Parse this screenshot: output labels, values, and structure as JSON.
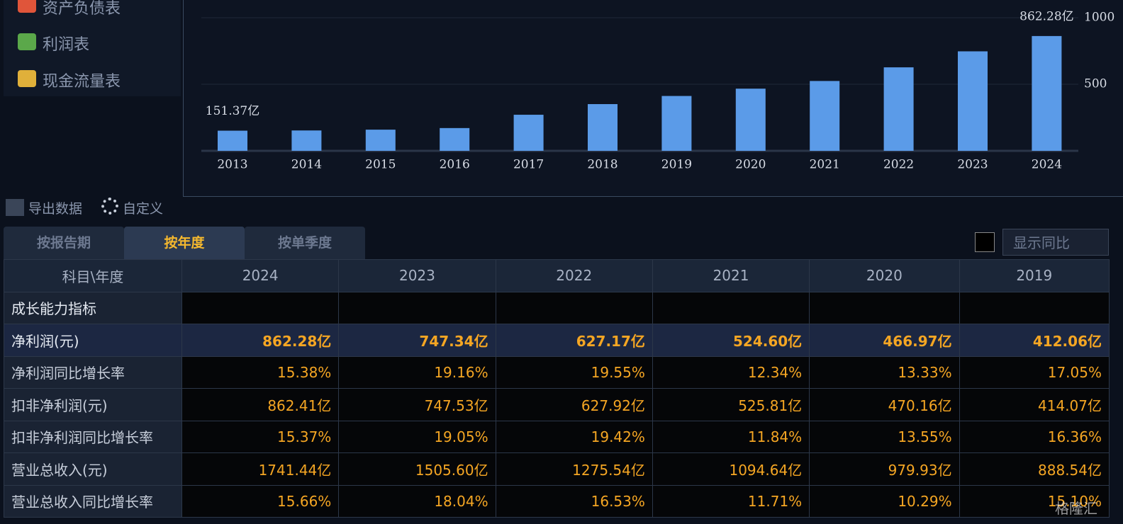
{
  "sidebar": {
    "items": [
      "资产负债表",
      "利润表",
      "现金流量表"
    ]
  },
  "chart_data": {
    "type": "bar",
    "categories": [
      "2013",
      "2014",
      "2015",
      "2016",
      "2017",
      "2018",
      "2019",
      "2020",
      "2021",
      "2022",
      "2023",
      "2024"
    ],
    "values": [
      151.37,
      153,
      159,
      171,
      271,
      351,
      412.06,
      466.97,
      524.6,
      627.17,
      747.34,
      862.28
    ],
    "value_labels": [
      "151.37亿",
      null,
      null,
      null,
      null,
      null,
      null,
      null,
      null,
      null,
      null,
      "862.28亿"
    ],
    "color": "#5b9be8",
    "ylim": [
      0,
      1000
    ],
    "yticks": [
      500,
      1000
    ],
    "grid": true
  },
  "toolbar": {
    "export": "导出数据",
    "custom": "自定义"
  },
  "tabs": {
    "items": [
      "按报告期",
      "按年度",
      "按单季度"
    ],
    "active": 1
  },
  "compare": "显示同比",
  "table": {
    "header": [
      "科目\\年度",
      "2024",
      "2023",
      "2022",
      "2021",
      "2020",
      "2019"
    ],
    "rows": [
      [
        "成长能力指标",
        "",
        "",
        "",
        "",
        "",
        ""
      ],
      [
        "净利润(元)",
        "862.28亿",
        "747.34亿",
        "627.17亿",
        "524.60亿",
        "466.97亿",
        "412.06亿"
      ],
      [
        "净利润同比增长率",
        "15.38%",
        "19.16%",
        "19.55%",
        "12.34%",
        "13.33%",
        "17.05%"
      ],
      [
        "扣非净利润(元)",
        "862.41亿",
        "747.53亿",
        "627.92亿",
        "525.81亿",
        "470.16亿",
        "414.07亿"
      ],
      [
        "扣非净利润同比增长率",
        "15.37%",
        "19.05%",
        "19.42%",
        "11.84%",
        "13.55%",
        "16.36%"
      ],
      [
        "营业总收入(元)",
        "1741.44亿",
        "1505.60亿",
        "1275.54亿",
        "1094.64亿",
        "979.93亿",
        "888.54亿"
      ],
      [
        "营业总收入同比增长率",
        "15.66%",
        "18.04%",
        "16.53%",
        "11.71%",
        "10.29%",
        "15.10%"
      ]
    ]
  },
  "watermark": "格隆汇"
}
